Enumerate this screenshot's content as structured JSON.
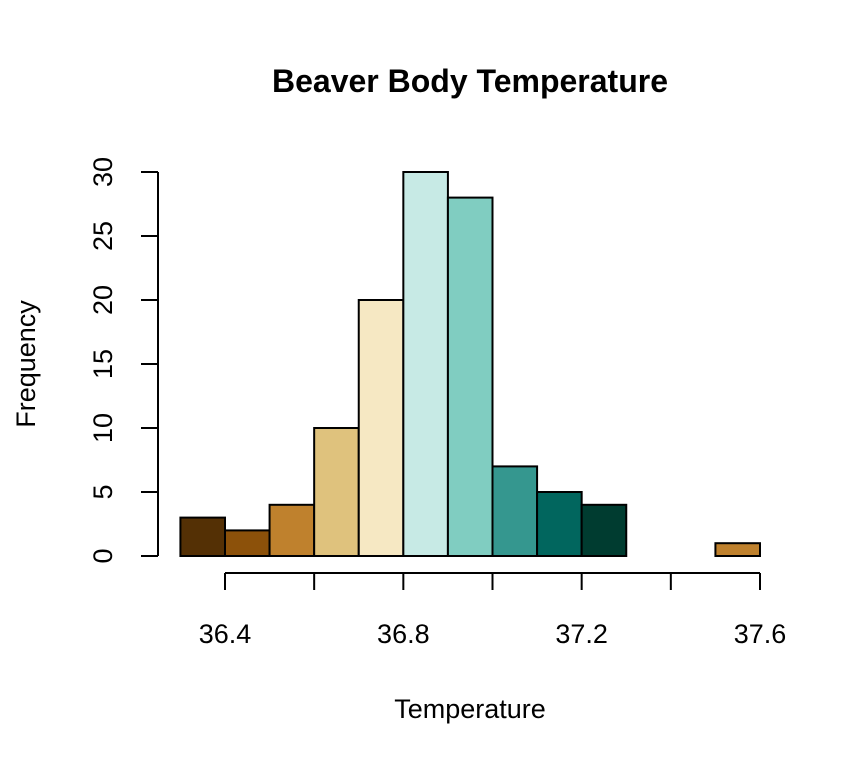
{
  "chart_data": {
    "type": "bar",
    "title": "Beaver Body Temperature",
    "xlabel": "Temperature",
    "ylabel": "Frequency",
    "bins": [
      {
        "x0": 36.3,
        "x1": 36.4,
        "value": 3,
        "color": "#543005"
      },
      {
        "x0": 36.4,
        "x1": 36.5,
        "value": 2,
        "color": "#8C510A"
      },
      {
        "x0": 36.5,
        "x1": 36.6,
        "value": 4,
        "color": "#BF812D"
      },
      {
        "x0": 36.6,
        "x1": 36.7,
        "value": 10,
        "color": "#DFC27D"
      },
      {
        "x0": 36.7,
        "x1": 36.8,
        "value": 20,
        "color": "#F6E8C3"
      },
      {
        "x0": 36.8,
        "x1": 36.9,
        "value": 30,
        "color": "#C7EAE5"
      },
      {
        "x0": 36.9,
        "x1": 37.0,
        "value": 28,
        "color": "#80CDC1"
      },
      {
        "x0": 37.0,
        "x1": 37.1,
        "value": 7,
        "color": "#35978F"
      },
      {
        "x0": 37.1,
        "x1": 37.2,
        "value": 5,
        "color": "#01665E"
      },
      {
        "x0": 37.2,
        "x1": 37.3,
        "value": 4,
        "color": "#003C30"
      },
      {
        "x0": 37.3,
        "x1": 37.4,
        "value": 0,
        "color": "#543005"
      },
      {
        "x0": 37.4,
        "x1": 37.5,
        "value": 0,
        "color": "#8C510A"
      },
      {
        "x0": 37.5,
        "x1": 37.6,
        "value": 1,
        "color": "#BF812D"
      }
    ],
    "xlim": [
      36.3,
      37.6
    ],
    "ylim": [
      0,
      30
    ],
    "x_ticks": [
      36.4,
      36.6,
      36.8,
      37.0,
      37.2,
      37.4,
      37.6
    ],
    "x_tick_labels": [
      "36.4",
      "",
      "36.8",
      "",
      "37.2",
      "",
      "37.6"
    ],
    "y_ticks": [
      0,
      5,
      10,
      15,
      20,
      25,
      30
    ],
    "y_tick_labels": [
      "0",
      "5",
      "10",
      "15",
      "20",
      "25",
      "30"
    ],
    "grid": false,
    "legend": "none"
  }
}
